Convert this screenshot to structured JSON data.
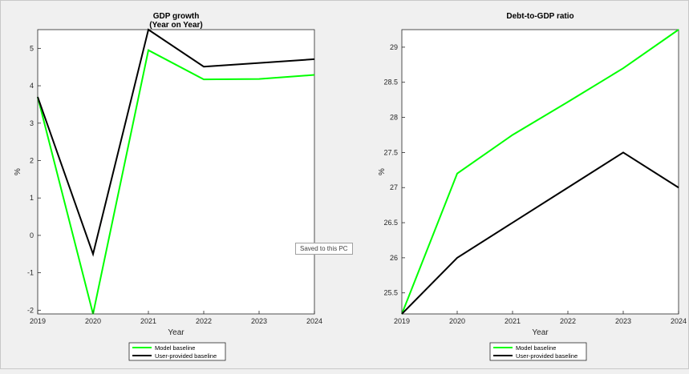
{
  "tooltip": "Saved to this PC",
  "chart_data": [
    {
      "type": "line",
      "title": "GDP growth",
      "subtitle": "(Year on Year)",
      "xlabel": "Year",
      "ylabel": "%",
      "x": [
        2019,
        2020,
        2021,
        2022,
        2023,
        2024
      ],
      "xlim": [
        2019,
        2024
      ],
      "ylim": [
        -2.1,
        5.5
      ],
      "yticks": [
        "-2",
        "-1",
        "0",
        "1",
        "2",
        "3",
        "4",
        "5"
      ],
      "xticks": [
        "2019",
        "2020",
        "2021",
        "2022",
        "2023",
        "2024"
      ],
      "grid": false,
      "legend": "bottom-center, outside plot",
      "series": [
        {
          "name": "Model baseline",
          "color": "#00ff00",
          "values": [
            3.7,
            -2.1,
            4.95,
            4.17,
            4.18,
            4.29
          ]
        },
        {
          "name": "User-provided baseline",
          "color": "#000000",
          "values": [
            3.7,
            -0.5,
            5.5,
            4.51,
            4.61,
            4.71
          ]
        }
      ]
    },
    {
      "type": "line",
      "title": "Debt-to-GDP ratio",
      "xlabel": "Year",
      "ylabel": "%",
      "x": [
        2019,
        2020,
        2021,
        2022,
        2023,
        2024
      ],
      "xlim": [
        2019,
        2024
      ],
      "ylim": [
        25.2,
        29.25
      ],
      "yticks": [
        "25.5",
        "26",
        "26.5",
        "27",
        "27.5",
        "28",
        "28.5",
        "29"
      ],
      "xticks": [
        "2019",
        "2020",
        "2021",
        "2022",
        "2023",
        "2024"
      ],
      "grid": false,
      "legend": "bottom-center, outside plot",
      "series": [
        {
          "name": "Model baseline",
          "color": "#00ff00",
          "values": [
            25.2,
            27.2,
            27.75,
            28.22,
            28.7,
            29.25
          ]
        },
        {
          "name": "User-provided baseline",
          "color": "#000000",
          "values": [
            25.2,
            26.0,
            26.5,
            27.0,
            27.5,
            27.0
          ]
        }
      ]
    }
  ]
}
